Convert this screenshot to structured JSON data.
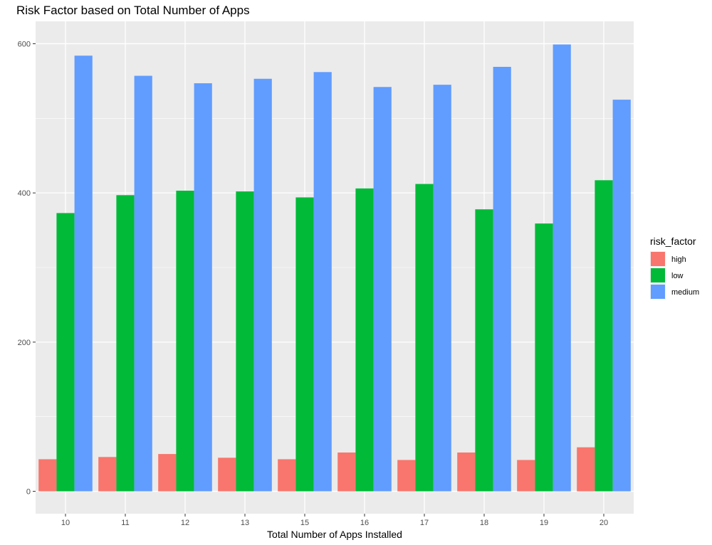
{
  "chart_data": {
    "type": "bar",
    "title": "Risk Factor based on Total Number of Apps",
    "xlabel": "Total Number of Apps Installed",
    "ylabel": "",
    "categories": [
      "10",
      "11",
      "12",
      "13",
      "15",
      "16",
      "17",
      "18",
      "19",
      "20"
    ],
    "series": [
      {
        "name": "high",
        "color": "#F8766D",
        "values": [
          43,
          46,
          50,
          45,
          43,
          52,
          42,
          52,
          42,
          59
        ]
      },
      {
        "name": "low",
        "color": "#00BA38",
        "values": [
          373,
          397,
          403,
          402,
          394,
          406,
          412,
          378,
          359,
          417
        ]
      },
      {
        "name": "medium",
        "color": "#619CFF",
        "values": [
          584,
          557,
          547,
          553,
          562,
          542,
          545,
          569,
          599,
          525
        ]
      }
    ],
    "ylim": [
      -30,
      630
    ],
    "yticks": [
      0,
      200,
      400,
      600
    ],
    "grid": true,
    "panel_background": "#EBEBEB",
    "legend": {
      "title": "risk_factor",
      "position": "right"
    }
  }
}
